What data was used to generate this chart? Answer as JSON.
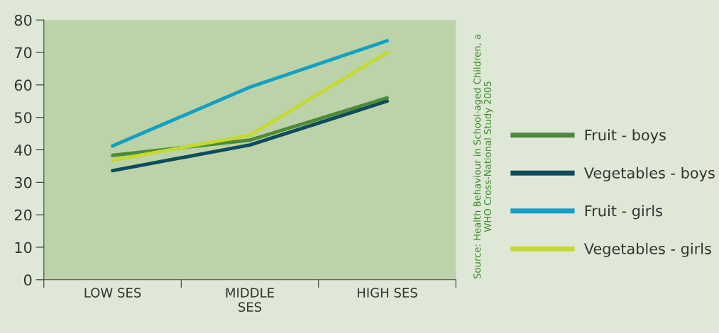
{
  "chart_data": {
    "type": "line",
    "categories": [
      "LOW SES",
      "MIDDLE\nSES",
      "HIGH SES"
    ],
    "series": [
      {
        "name": "Fruit - boys",
        "color": "#4b8b3b",
        "values": [
          38.3,
          43.0,
          56.0
        ]
      },
      {
        "name": "Vegetables - boys",
        "color": "#0e4c5c",
        "values": [
          33.6,
          41.5,
          55.0
        ]
      },
      {
        "name": "Fruit - girls",
        "color": "#12a0c2",
        "values": [
          41.2,
          59.3,
          73.6
        ]
      },
      {
        "name": "Vegetables - girls",
        "color": "#c5d92f",
        "values": [
          36.8,
          44.5,
          70.0
        ]
      }
    ],
    "ylim": [
      0,
      80
    ],
    "yticks": [
      0,
      10,
      20,
      30,
      40,
      50,
      60,
      70,
      80
    ],
    "grid": false,
    "legend": "right",
    "marker": "none",
    "line_style": "solid",
    "annotations": [
      "Source: Health Behaviour in School-aged Children, a\nWHO Cross-National Study 2005"
    ]
  }
}
